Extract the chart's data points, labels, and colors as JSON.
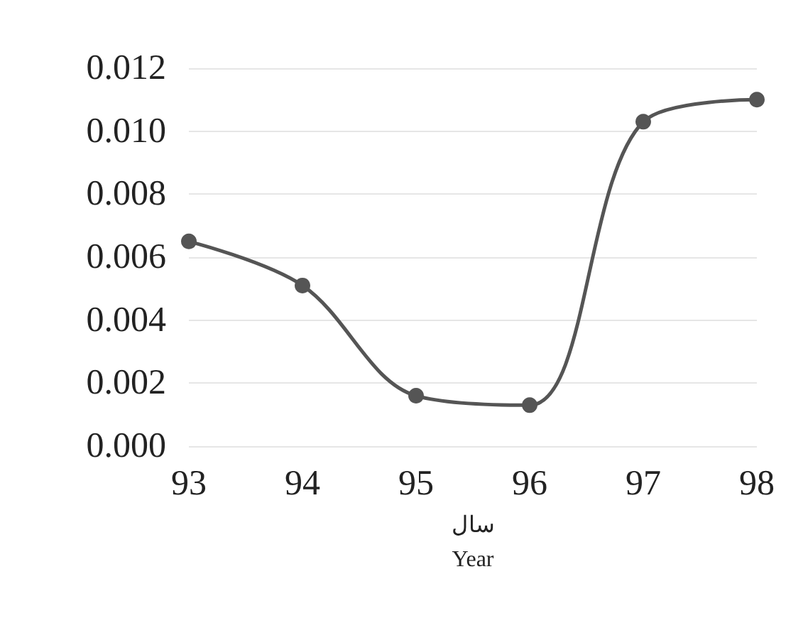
{
  "chart_data": {
    "type": "line",
    "xlabel": "سال\nYear",
    "categories": [
      "93",
      "94",
      "95",
      "96",
      "97",
      "98"
    ],
    "series": [
      {
        "color": "#555555",
        "values": [
          0.0065,
          0.0051,
          0.0016,
          0.0013,
          0.0103,
          0.011
        ]
      }
    ],
    "ylim": [
      0,
      0.012
    ],
    "yticks": [
      {
        "value": 0,
        "label": "0.000"
      },
      0.002,
      0.004,
      0.006,
      0.008,
      {
        "value": 0.01,
        "label": "0.010"
      },
      0.012
    ],
    "grid": "y",
    "marker": "circle",
    "line_style": "solid"
  }
}
